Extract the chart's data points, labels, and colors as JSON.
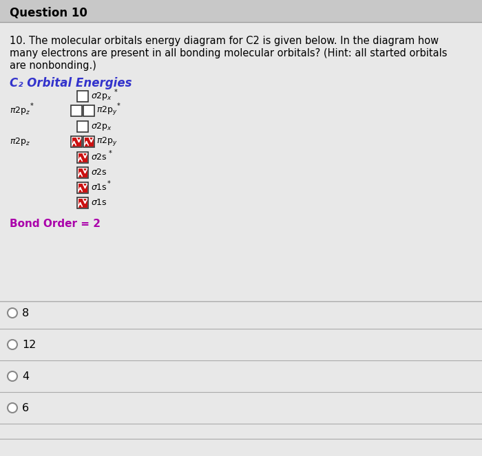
{
  "title": "Question 10",
  "question_text_line1": "10. The molecular orbitals energy diagram for C2 is given below. In the diagram how",
  "question_text_line2": "many electrons are present in all bonding molecular orbitals? (Hint: all started orbitals",
  "question_text_line3": "are nonbonding.)",
  "diagram_title": "C₂ Orbital Energies",
  "diagram_title_color": "#3333cc",
  "bond_order_text": "Bond Order = 2",
  "bond_order_color": "#aa00aa",
  "background_color": "#d4d4d4",
  "content_bg_color": "#e8e8e8",
  "header_bg_color": "#c8c8c8",
  "answer_choices": [
    "8",
    "12",
    "4",
    "6"
  ],
  "filled_box_bg": "#cc1111",
  "empty_box_bg": "white",
  "box_border": "#333333",
  "separator_color": "#aaaaaa",
  "header_line_color": "#999999"
}
